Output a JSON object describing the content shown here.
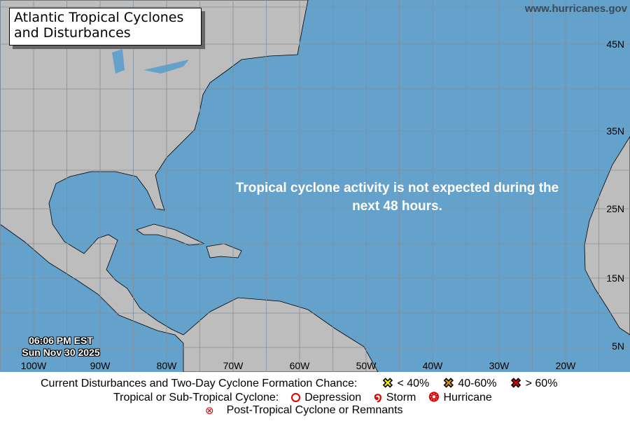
{
  "title": "Atlantic Tropical Cyclones\nand Disturbances",
  "website": "www.hurricanes.gov",
  "message": "Tropical cyclone activity is not expected during the next 48 hours.",
  "timestamp": {
    "time": "06:06 PM EST",
    "date": "Sun Nov 30 2025"
  },
  "longitude_labels": [
    "100W",
    "90W",
    "80W",
    "70W",
    "60W",
    "50W",
    "40W",
    "30W",
    "20W"
  ],
  "latitude_labels": [
    "45N",
    "35N",
    "25N",
    "15N",
    "5N"
  ],
  "colors": {
    "ocean": "#64a2cb",
    "land": "#bdbdbd",
    "grid": "#7f8f9c"
  },
  "legend": {
    "disturbances_label": "Current Disturbances and Two-Day Cyclone Formation Chance:",
    "chances": [
      {
        "label": "< 40%",
        "color": "#f5f500"
      },
      {
        "label": "40-60%",
        "color": "#f08c00"
      },
      {
        "label": "> 60%",
        "color": "#e00000"
      }
    ],
    "cyclone_label": "Tropical or Sub-Tropical Cyclone:",
    "cyclone_types": [
      {
        "label": "Depression",
        "icon": "open-circle-icon"
      },
      {
        "label": "Storm",
        "icon": "storm-symbol-icon"
      },
      {
        "label": "Hurricane",
        "icon": "hurricane-symbol-icon"
      }
    ],
    "post_tropical_label": "Post-Tropical Cyclone or Remnants"
  }
}
